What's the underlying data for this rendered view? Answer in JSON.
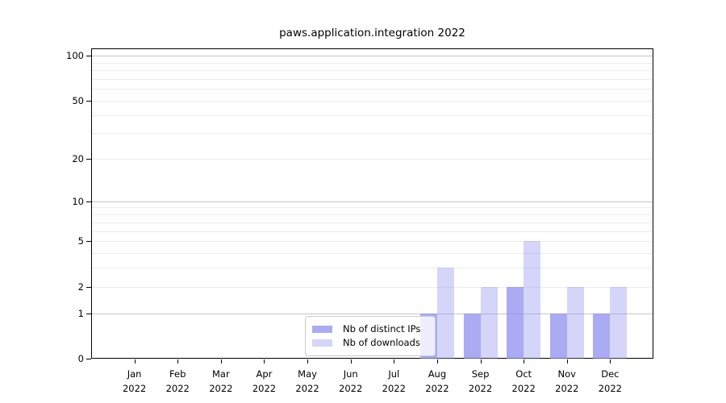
{
  "chart_data": {
    "type": "bar",
    "title": "paws.application.integration 2022",
    "x_months": [
      "Jan",
      "Feb",
      "Mar",
      "Apr",
      "May",
      "Jun",
      "Jul",
      "Aug",
      "Sep",
      "Oct",
      "Nov",
      "Dec"
    ],
    "x_year": "2022",
    "series": [
      {
        "name": "Nb of distinct IPs",
        "alpha": 0.7,
        "values": [
          0,
          0,
          0,
          0,
          0,
          0,
          0,
          1,
          1,
          2,
          1,
          1
        ]
      },
      {
        "name": "Nb of downloads",
        "alpha": 0.35,
        "values": [
          0,
          0,
          0,
          0,
          0,
          0,
          0,
          3,
          2,
          5,
          2,
          2
        ]
      }
    ],
    "bar_base_color": "#8888ee",
    "y_scale": "log1p",
    "ylim": [
      0,
      112
    ],
    "y_ticks": [
      0,
      1,
      2,
      5,
      10,
      20,
      50,
      100
    ],
    "y_major_grid": [
      1,
      10,
      100
    ],
    "y_minor_grid": [
      2,
      3,
      4,
      5,
      6,
      7,
      8,
      9,
      20,
      30,
      40,
      50,
      60,
      70,
      80,
      90
    ],
    "grid": true,
    "legend_position": "lower center",
    "colors": {
      "grid_major": "#c6c6c6",
      "grid_minor": "#ececec",
      "axis": "#000000",
      "text": "#000000",
      "legend_border": "#cccccc"
    }
  }
}
